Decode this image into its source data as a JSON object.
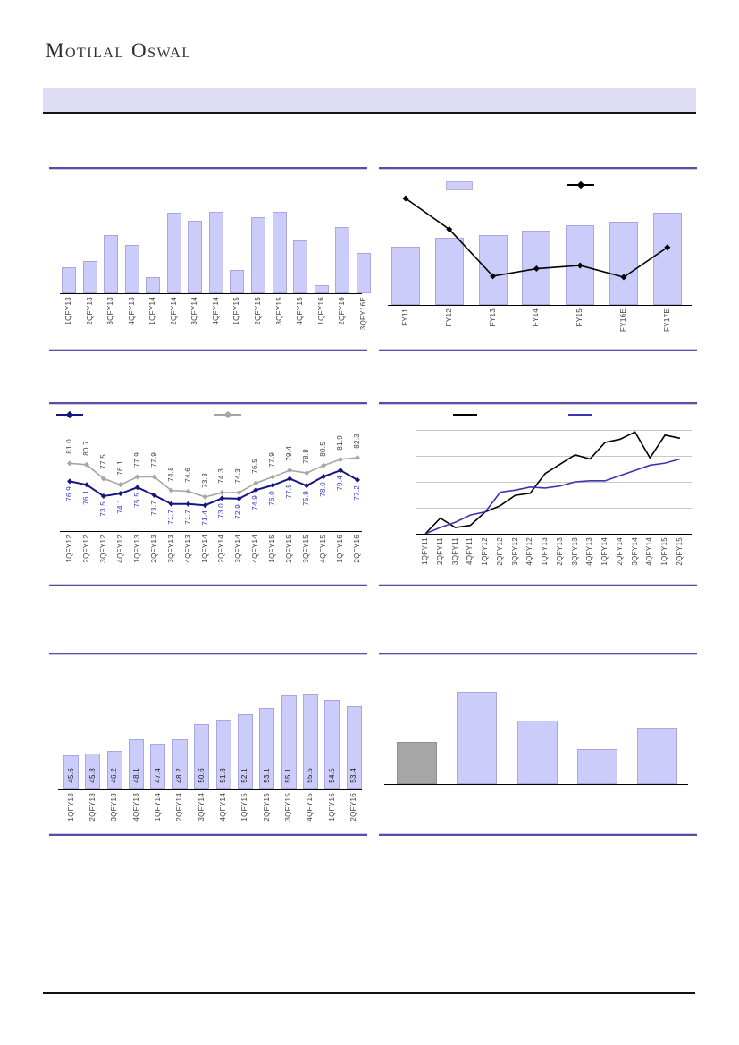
{
  "header": {
    "logo_text": "Motilal Oswal"
  },
  "page": {
    "colors": {
      "separator": "#564FA5",
      "separator_light": "#CBC8EA",
      "banner_bg": "#DFDDF5",
      "bottom_rule": "#111111",
      "bar_fill": "#CCCCFA",
      "bar_border": "#A9A7E0",
      "gray_bar": "#A6A6A6",
      "gray_bar_border": "#8F8F8F",
      "navy_line": "#16167F",
      "blue_label": "#3737C8",
      "gray_line": "#A6A6A6",
      "dark_label": "#3F3F3F",
      "black_line": "#000000",
      "royal_blue_line": "#3A35B0",
      "gridline": "#C8C8C8"
    }
  },
  "chart_data": [
    {
      "id": "top-left-quarterly-bar-chart",
      "type": "bar",
      "title": "",
      "categories": [
        "1QFY13",
        "2QFY13",
        "3QFY13",
        "4QFY13",
        "1QFY14",
        "2QFY14",
        "3QFY14",
        "4QFY14",
        "1QFY15",
        "2QFY15",
        "3QFY15",
        "4QFY15",
        "1QFY16",
        "2QFY16",
        "3QFY16E"
      ],
      "values": [
        32,
        40,
        71,
        59,
        20,
        99,
        89,
        100,
        29,
        93,
        100,
        65,
        10,
        81,
        49
      ],
      "value_labels_shown": false,
      "unit": "percent of tallest bar (no axis values printed)",
      "xlabel": "",
      "ylabel": ""
    },
    {
      "id": "top-right-annual-bar-line-chart",
      "type": "bar+line",
      "title": "",
      "categories": [
        "FY11",
        "FY12",
        "FY13",
        "FY14",
        "FY15",
        "FY16E",
        "FY17E"
      ],
      "series": [
        {
          "name": "lavender-bars",
          "type": "bar",
          "values": [
            63,
            73,
            76,
            81,
            86,
            90,
            100
          ]
        },
        {
          "name": "black-diamond-line",
          "type": "line",
          "values": [
            100,
            71,
            27,
            34,
            37,
            26,
            54
          ]
        }
      ],
      "value_labels_shown": false,
      "unit": "percent of chart maximum (no axis values printed)",
      "legend": {
        "items": [
          "bar-swatch",
          "line-diamond-swatch"
        ],
        "text_visible": false,
        "position": "top"
      }
    },
    {
      "id": "middle-left-dual-line-chart",
      "type": "line",
      "title": "",
      "categories": [
        "1QFY12",
        "2QFY12",
        "3QFY12",
        "4QFY12",
        "1QFY13",
        "2QFY13",
        "3QFY13",
        "4QFY13",
        "1QFY14",
        "2QFY14",
        "3QFY14",
        "4QFY14",
        "1QFY15",
        "2QFY15",
        "3QFY15",
        "4QFY15",
        "1QFY16",
        "2QFY16"
      ],
      "series": [
        {
          "name": "navy-diamond-line",
          "values": [
            76.9,
            76.1,
            73.5,
            74.1,
            75.5,
            73.7,
            71.7,
            71.7,
            71.4,
            73.0,
            72.9,
            74.9,
            76.0,
            77.5,
            75.9,
            78.0,
            79.4,
            77.2
          ]
        },
        {
          "name": "gray-diamond-line",
          "values": [
            81.0,
            80.7,
            77.5,
            76.1,
            77.9,
            77.9,
            74.8,
            74.6,
            73.3,
            74.3,
            74.3,
            76.5,
            77.9,
            79.4,
            78.8,
            80.5,
            81.9,
            82.3
          ]
        }
      ],
      "data_labels_shown": true,
      "legend": {
        "items": [
          "navy-line-diamond-swatch",
          "gray-line-diamond-swatch"
        ],
        "text_visible": false,
        "position": "top"
      }
    },
    {
      "id": "middle-right-dual-line-chart",
      "type": "line",
      "title": "",
      "categories": [
        "1QFY11",
        "2QFY11",
        "3QFY11",
        "4QFY11",
        "1QFY12",
        "2QFY12",
        "3QFY12",
        "4QFY12",
        "1QFY13",
        "2QFY13",
        "3QFY13",
        "4QFY13",
        "1QFY14",
        "2QFY14",
        "3QFY14",
        "4QFY14",
        "1QFY15",
        "2QFY15"
      ],
      "series": [
        {
          "name": "black-line",
          "values": [
            0,
            15,
            6,
            8,
            21,
            27,
            37,
            39,
            58,
            67,
            76,
            72,
            88,
            91,
            98,
            73,
            95,
            92
          ]
        },
        {
          "name": "blue-line",
          "values": [
            0,
            6,
            11,
            18,
            21,
            40,
            42,
            45,
            44,
            46,
            50,
            51,
            51,
            56,
            61,
            66,
            68,
            72
          ]
        }
      ],
      "ylim": [
        0,
        105
      ],
      "gridlines": [
        25,
        50,
        75,
        100
      ],
      "value_labels_shown": false,
      "unit": "indexed scale estimated from unlabeled gridlines",
      "legend": {
        "items": [
          "black-line-swatch",
          "blue-line-swatch"
        ],
        "text_visible": false,
        "position": "top"
      }
    },
    {
      "id": "bottom-left-quarterly-bar-chart",
      "type": "bar",
      "title": "",
      "categories": [
        "1QFY13",
        "2QFY13",
        "3QFY13",
        "4QFY13",
        "1QFY14",
        "2QFY14",
        "3QFY14",
        "4QFY14",
        "1QFY15",
        "2QFY15",
        "3QFY15",
        "4QFY15",
        "1QFY16",
        "2QFY16"
      ],
      "values": [
        45.6,
        45.8,
        46.2,
        48.1,
        47.4,
        48.2,
        50.6,
        51.3,
        52.1,
        53.1,
        55.1,
        55.5,
        54.5,
        53.4
      ],
      "data_labels_shown": true,
      "ylim": [
        40,
        57
      ]
    },
    {
      "id": "bottom-right-bar-chart",
      "type": "bar",
      "title": "",
      "categories": [
        "",
        "",
        "",
        "",
        ""
      ],
      "values": [
        46,
        100,
        69,
        38,
        61
      ],
      "bar_colors": [
        "gray",
        "lavender",
        "lavender",
        "lavender",
        "lavender"
      ],
      "value_labels_shown": false,
      "unit": "percent of tallest bar (no labels printed)"
    }
  ]
}
